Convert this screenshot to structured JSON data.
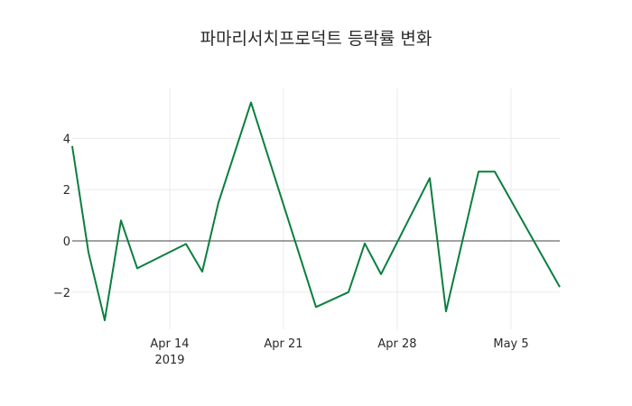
{
  "chart_data": {
    "type": "line",
    "title": "파마리서치프로덕트 등락률 변화",
    "xlabel": "",
    "ylabel": "",
    "x": [
      "2019-04-08",
      "2019-04-09",
      "2019-04-10",
      "2019-04-11",
      "2019-04-12",
      "2019-04-15",
      "2019-04-16",
      "2019-04-17",
      "2019-04-19",
      "2019-04-23",
      "2019-04-25",
      "2019-04-26",
      "2019-04-27",
      "2019-04-30",
      "2019-05-01",
      "2019-05-03",
      "2019-05-04",
      "2019-05-08"
    ],
    "series": [
      {
        "name": "등락률",
        "color": "#0a7f3f",
        "values": [
          3.7,
          -0.45,
          -3.1,
          0.8,
          -1.07,
          -0.12,
          -1.2,
          1.5,
          5.4,
          -2.58,
          -2.0,
          -0.1,
          -1.3,
          2.45,
          -2.75,
          2.7,
          2.7,
          -1.8
        ]
      }
    ],
    "x_ticks": [
      {
        "label": "Apr 14",
        "sublabel": "2019",
        "date": "2019-04-14"
      },
      {
        "label": "Apr 21",
        "sublabel": "",
        "date": "2019-04-21"
      },
      {
        "label": "Apr 28",
        "sublabel": "",
        "date": "2019-04-28"
      },
      {
        "label": "May 5",
        "sublabel": "",
        "date": "2019-05-05"
      }
    ],
    "y_ticks": [
      4,
      2,
      0,
      -2
    ],
    "y_tick_labels": [
      "4",
      "2",
      "0",
      "−2"
    ],
    "ylim": [
      -3.5,
      5.9
    ],
    "xlim": [
      "2019-04-08",
      "2019-05-08"
    ],
    "grid": true,
    "zero_line": true,
    "legend": "none"
  }
}
